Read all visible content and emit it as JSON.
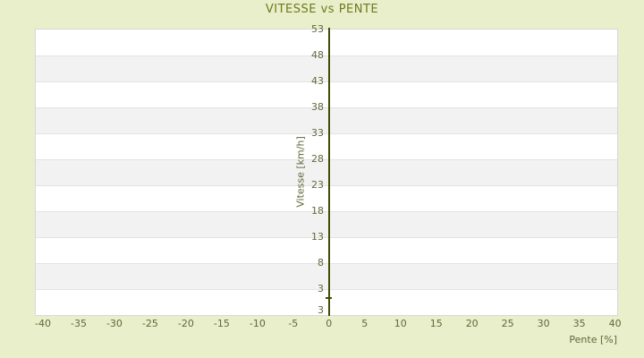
{
  "chart_data": {
    "type": "scatter",
    "title": "VITESSE vs PENTE",
    "xlabel": "Pente [%]",
    "ylabel": "Vitesse [km/h]",
    "x_ticks": [
      -40,
      -35,
      -30,
      -25,
      -20,
      -15,
      -10,
      -5,
      0,
      5,
      10,
      15,
      20,
      25,
      30,
      35,
      40
    ],
    "y_ticks": [
      53,
      48,
      43,
      38,
      33,
      28,
      23,
      18,
      13,
      8,
      3
    ],
    "y_bottom_edge_label": "3",
    "xlim": [
      -41,
      40.3
    ],
    "ylim": [
      -2,
      53
    ],
    "grid": "horizontal-alternating-bands",
    "legend": "none",
    "zero_axis_at_x": 0,
    "marker": "plus",
    "points": [
      {
        "x": 0,
        "y": 1.3
      }
    ]
  },
  "colors": {
    "page_bg": "#e9eecb",
    "band_light": "#ffffff",
    "band_dark": "#f2f2f2",
    "grid_line": "#e3e3e3",
    "plot_border": "#d8d8d8",
    "title": "#6e7a1b",
    "tick_label": "#60693a",
    "axis_line": "#414e05"
  }
}
